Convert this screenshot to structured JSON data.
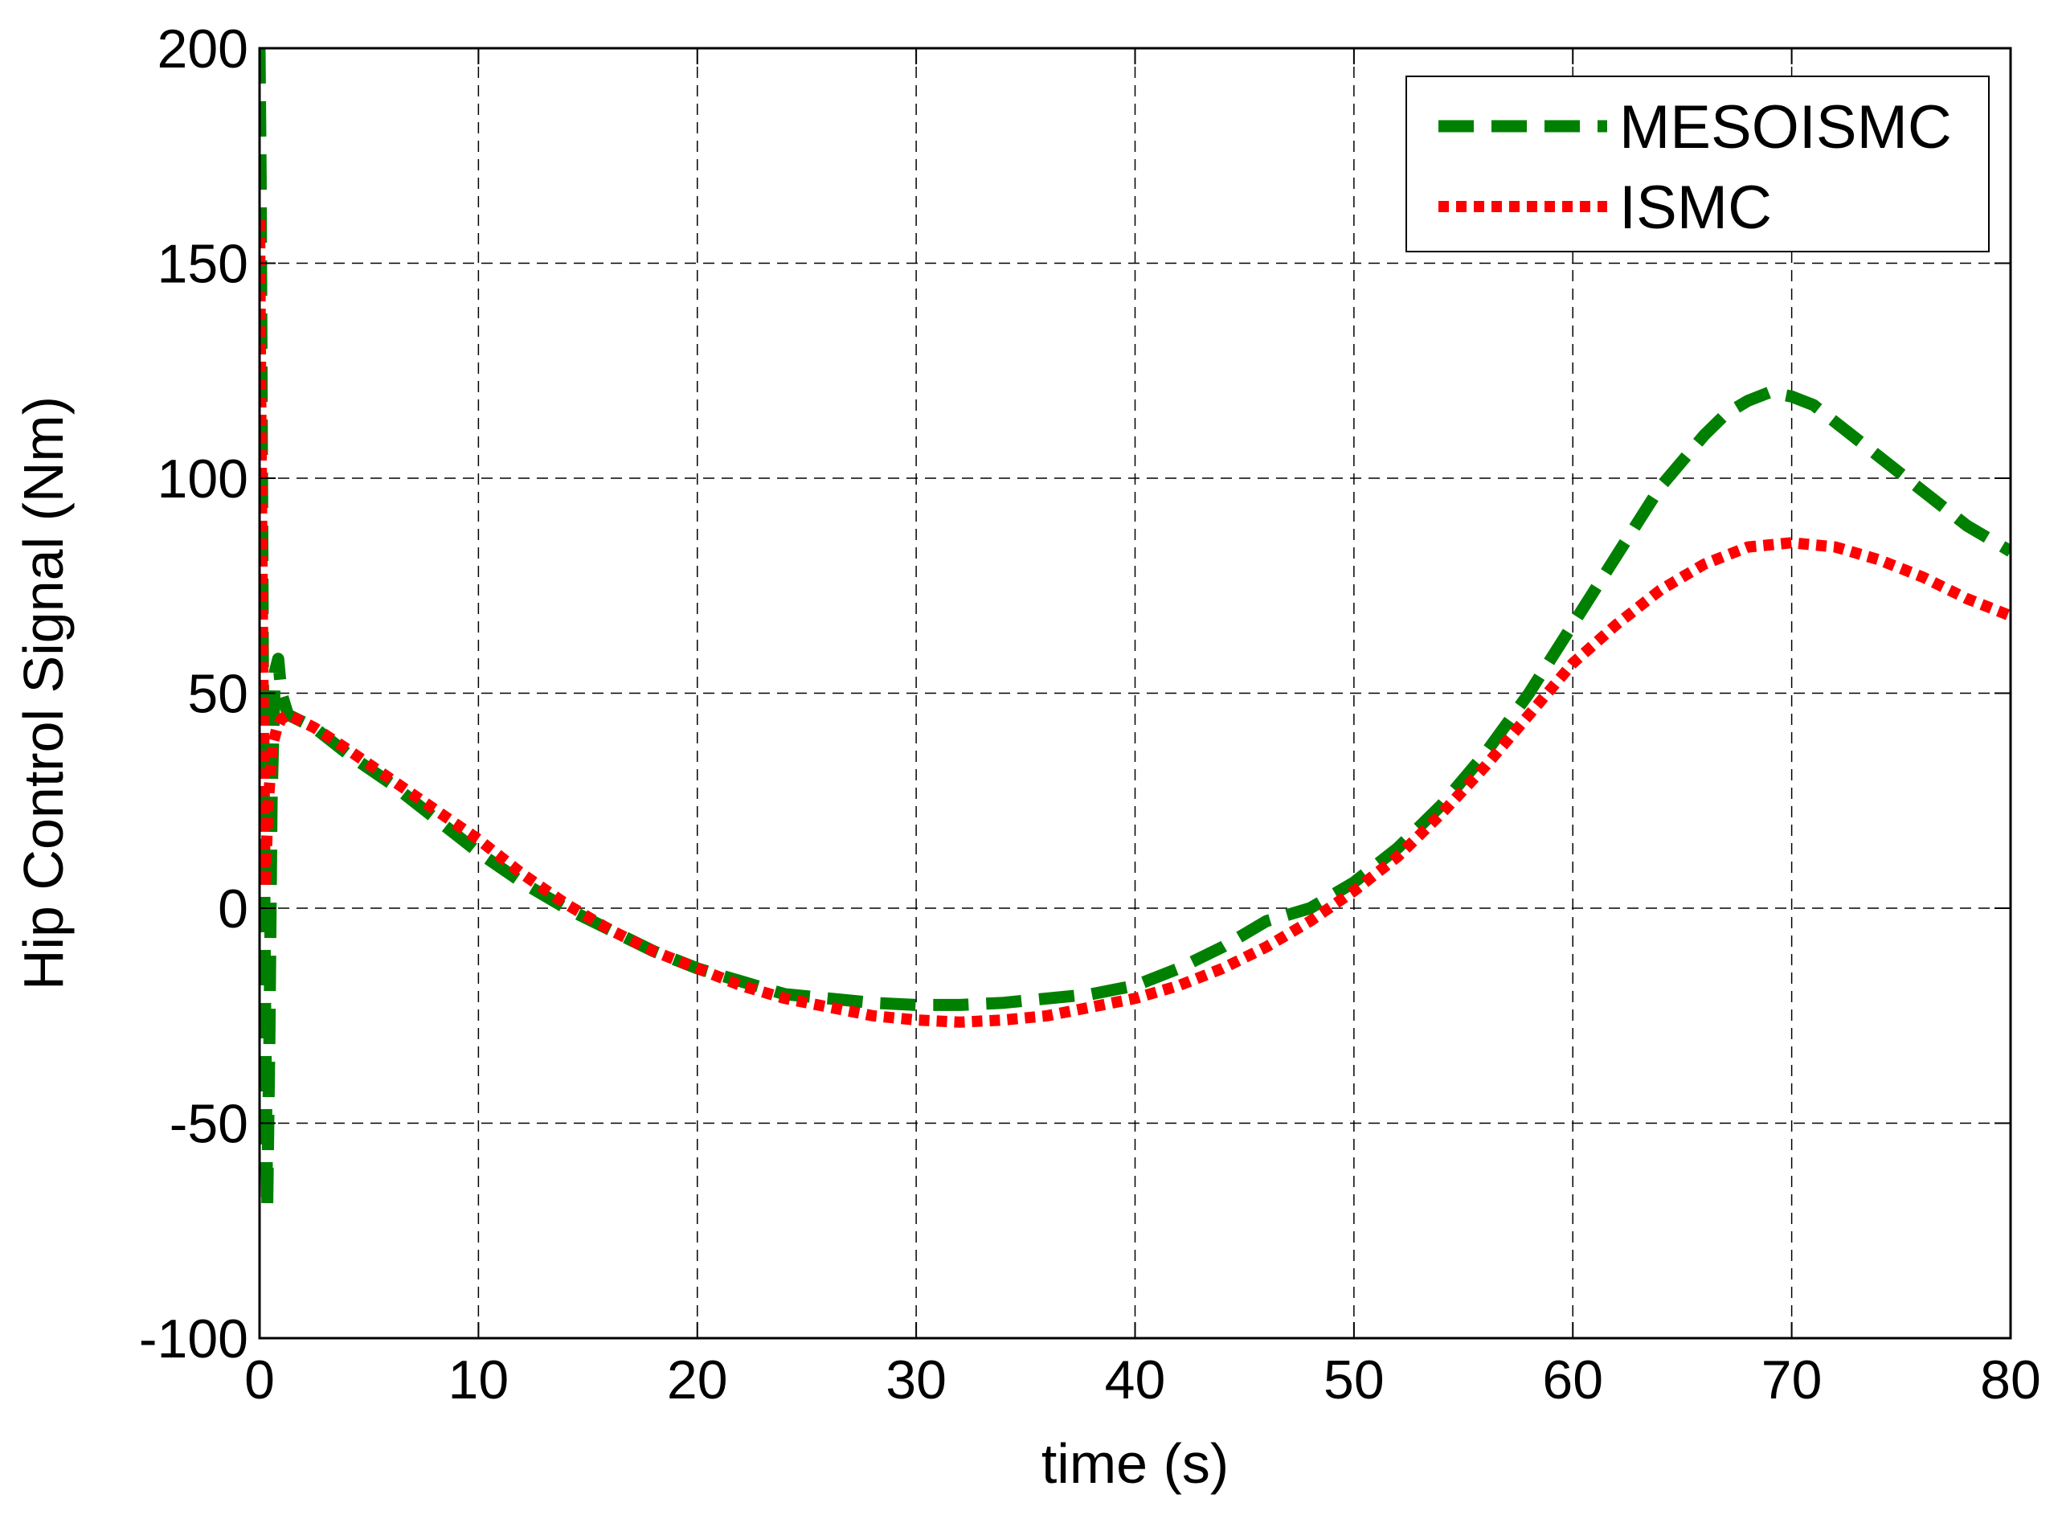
{
  "chart_data": {
    "type": "line",
    "title": "",
    "xlabel": "time (s)",
    "ylabel": "Hip Control Signal (Nm)",
    "xlim": [
      0,
      80
    ],
    "ylim": [
      -100,
      200
    ],
    "xticks": [
      0,
      10,
      20,
      30,
      40,
      50,
      60,
      70,
      80
    ],
    "yticks": [
      -100,
      -50,
      0,
      50,
      100,
      150,
      200
    ],
    "xtick_labels": [
      "0",
      "10",
      "20",
      "30",
      "40",
      "50",
      "60",
      "70",
      "80"
    ],
    "ytick_labels": [
      "-100",
      "-50",
      "0",
      "50",
      "100",
      "150",
      "200"
    ],
    "grid": true,
    "legend_position": "top-right",
    "series": [
      {
        "name": "MESOISMC",
        "color": "#008000",
        "style": "dashed",
        "x": [
          0,
          0.05,
          0.15,
          0.25,
          0.35,
          0.45,
          0.55,
          0.7,
          0.85,
          1.0,
          1.3,
          1.7,
          2.5,
          4,
          6,
          8,
          10,
          12,
          14,
          16,
          18,
          20,
          22,
          24,
          26,
          28,
          30,
          32,
          34,
          36,
          38,
          40,
          42,
          44,
          46,
          48,
          50,
          52,
          54,
          56,
          58,
          60,
          62,
          64,
          66,
          67,
          68,
          69,
          70,
          71,
          72,
          74,
          76,
          78,
          80
        ],
        "y": [
          200,
          170,
          60,
          -20,
          -70,
          -30,
          25,
          55,
          58,
          50,
          45,
          44,
          42,
          36,
          29,
          21,
          13,
          6,
          0,
          -5,
          -10,
          -14,
          -17,
          -20,
          -21,
          -22,
          -22.5,
          -22.5,
          -22,
          -21,
          -20,
          -18,
          -14,
          -9,
          -3,
          0,
          6,
          14,
          24,
          36,
          50,
          66,
          82,
          98,
          110,
          115,
          118,
          120,
          119,
          117,
          113,
          105,
          97,
          89,
          83
        ]
      },
      {
        "name": "ISMC",
        "color": "#ff0000",
        "style": "dotted",
        "x": [
          0,
          0.05,
          0.15,
          0.25,
          0.4,
          0.6,
          0.8,
          1.0,
          1.3,
          1.7,
          2.5,
          4,
          6,
          8,
          10,
          12,
          14,
          16,
          18,
          20,
          22,
          24,
          26,
          28,
          30,
          32,
          34,
          36,
          38,
          40,
          42,
          44,
          46,
          48,
          50,
          52,
          54,
          56,
          58,
          60,
          62,
          64,
          66,
          68,
          70,
          72,
          74,
          76,
          78,
          80
        ],
        "y": [
          160,
          120,
          55,
          5,
          25,
          38,
          42,
          44,
          45,
          44,
          42,
          37,
          30,
          23,
          16,
          8,
          1,
          -5,
          -10,
          -14,
          -18,
          -21,
          -23,
          -25,
          -26,
          -26.5,
          -26,
          -25,
          -23,
          -21,
          -18,
          -14,
          -9,
          -3,
          4,
          12,
          22,
          33,
          45,
          57,
          66,
          74,
          80,
          84,
          85,
          84,
          81,
          77,
          72,
          68
        ]
      }
    ]
  }
}
